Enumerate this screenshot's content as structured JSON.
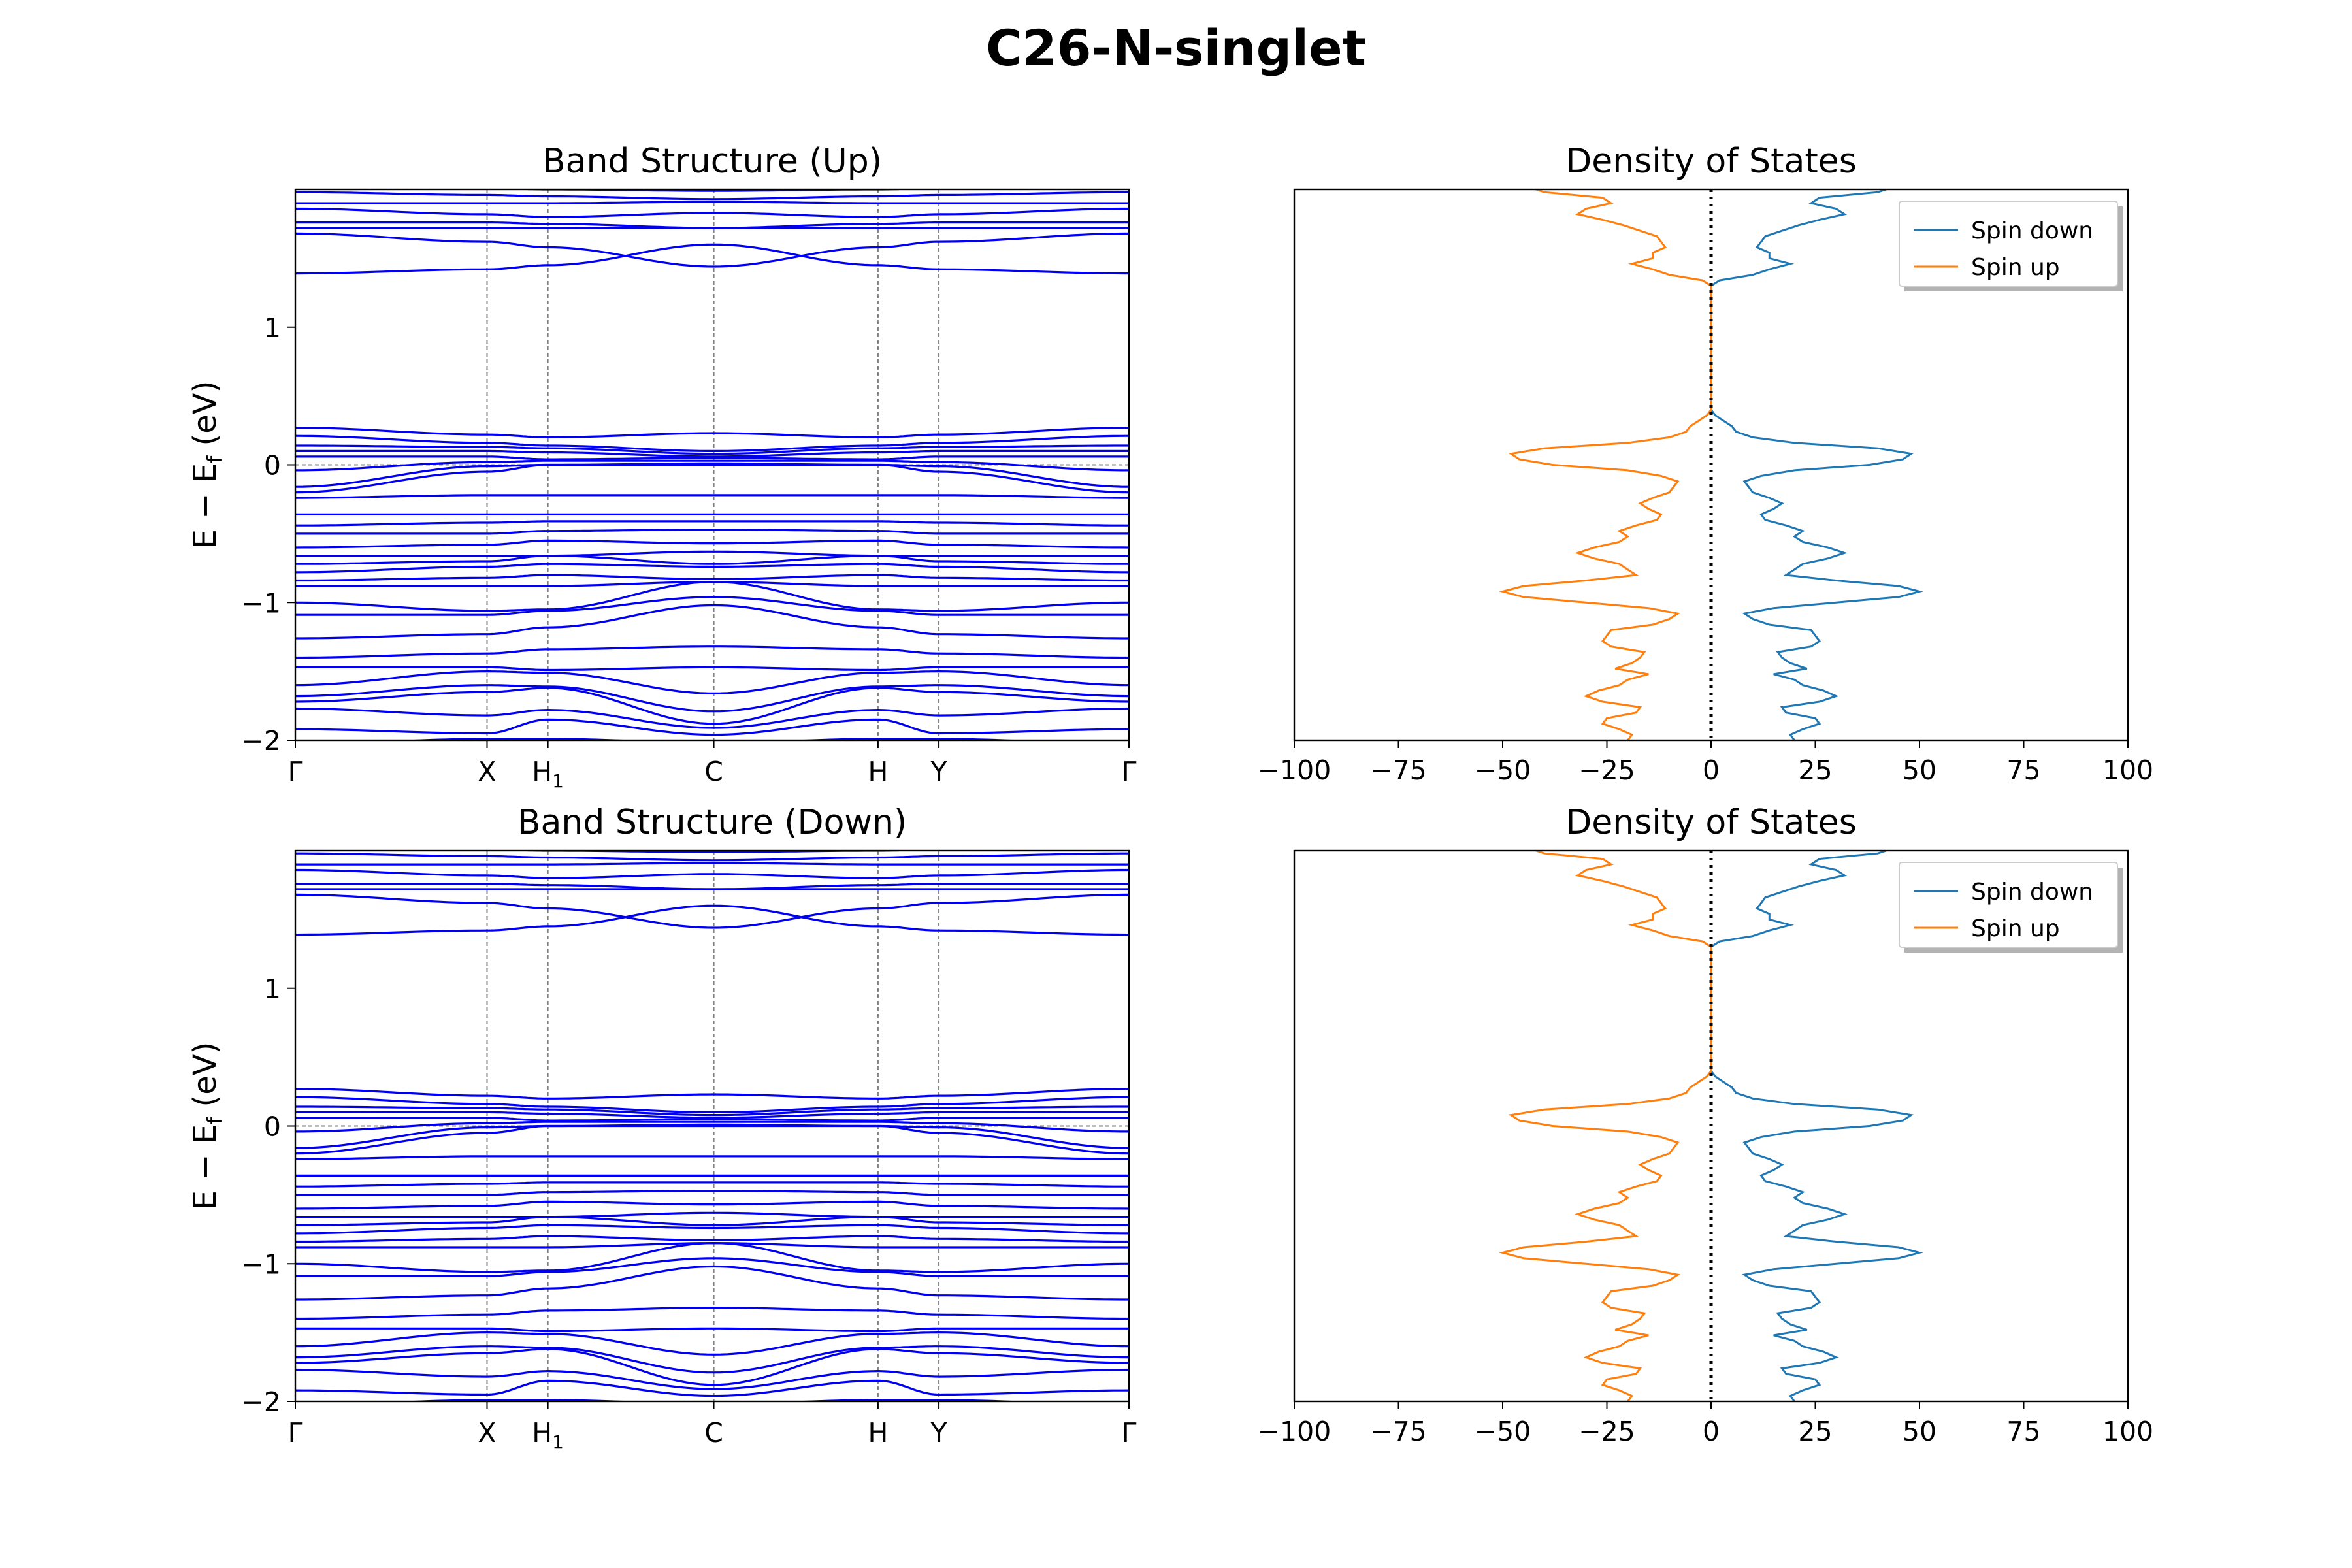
{
  "figure": {
    "title": "C26-N-singlet"
  },
  "chart_data": [
    {
      "id": "band_up",
      "type": "line",
      "title": "Band Structure (Up)",
      "ylabel": "E − E_f (eV)",
      "ylim": [
        -2,
        2
      ],
      "yticks": [
        -2,
        -1,
        0,
        1
      ],
      "kpoints": [
        {
          "label": "Γ",
          "pos": 0.0
        },
        {
          "label": "X",
          "pos": 0.23
        },
        {
          "label": "H",
          "sub": "1",
          "pos": 0.303
        },
        {
          "label": "C",
          "pos": 0.502
        },
        {
          "label": "H",
          "pos": 0.699
        },
        {
          "label": "Y",
          "pos": 0.772
        },
        {
          "label": "Γ",
          "pos": 1.0
        }
      ],
      "band_color": "#0000ee",
      "bands": [
        [
          -2.03,
          -1.99,
          -1.99,
          -2.02,
          -1.99,
          -1.99,
          -2.03
        ],
        [
          -1.92,
          -1.95,
          -1.85,
          -1.96,
          -1.85,
          -1.95,
          -1.92
        ],
        [
          -1.77,
          -1.82,
          -1.78,
          -1.91,
          -1.78,
          -1.82,
          -1.77
        ],
        [
          -1.72,
          -1.65,
          -1.62,
          -1.88,
          -1.62,
          -1.65,
          -1.72
        ],
        [
          -1.68,
          -1.6,
          -1.61,
          -1.79,
          -1.61,
          -1.6,
          -1.68
        ],
        [
          -1.6,
          -1.5,
          -1.51,
          -1.66,
          -1.51,
          -1.5,
          -1.6
        ],
        [
          -1.47,
          -1.47,
          -1.49,
          -1.47,
          -1.49,
          -1.47,
          -1.47
        ],
        [
          -1.4,
          -1.37,
          -1.34,
          -1.32,
          -1.34,
          -1.37,
          -1.4
        ],
        [
          -1.26,
          -1.23,
          -1.18,
          -1.02,
          -1.18,
          -1.23,
          -1.26
        ],
        [
          -1.09,
          -1.09,
          -1.06,
          -0.96,
          -1.06,
          -1.09,
          -1.09
        ],
        [
          -1.0,
          -1.06,
          -1.05,
          -0.85,
          -1.05,
          -1.06,
          -1.0
        ],
        [
          -0.88,
          -0.88,
          -0.88,
          -0.85,
          -0.88,
          -0.88,
          -0.88
        ],
        [
          -0.84,
          -0.82,
          -0.8,
          -0.83,
          -0.8,
          -0.82,
          -0.84
        ],
        [
          -0.78,
          -0.74,
          -0.72,
          -0.74,
          -0.72,
          -0.74,
          -0.78
        ],
        [
          -0.72,
          -0.7,
          -0.66,
          -0.72,
          -0.66,
          -0.7,
          -0.72
        ],
        [
          -0.66,
          -0.66,
          -0.66,
          -0.63,
          -0.66,
          -0.66,
          -0.66
        ],
        [
          -0.6,
          -0.58,
          -0.55,
          -0.57,
          -0.55,
          -0.58,
          -0.6
        ],
        [
          -0.5,
          -0.5,
          -0.48,
          -0.47,
          -0.48,
          -0.5,
          -0.5
        ],
        [
          -0.44,
          -0.42,
          -0.41,
          -0.41,
          -0.41,
          -0.42,
          -0.44
        ],
        [
          -0.36,
          -0.36,
          -0.36,
          -0.36,
          -0.36,
          -0.36,
          -0.36
        ],
        [
          -0.24,
          -0.22,
          -0.22,
          -0.22,
          -0.22,
          -0.22,
          -0.24
        ],
        [
          -0.2,
          -0.05,
          0.0,
          0.01,
          0.0,
          -0.05,
          -0.2
        ],
        [
          -0.16,
          -0.01,
          0.0,
          0.0,
          0.0,
          -0.01,
          -0.16
        ],
        [
          -0.04,
          0.02,
          0.03,
          0.03,
          0.03,
          0.02,
          -0.04
        ],
        [
          0.06,
          0.06,
          0.04,
          0.05,
          0.04,
          0.06,
          0.06
        ],
        [
          0.1,
          0.1,
          0.09,
          0.06,
          0.09,
          0.1,
          0.1
        ],
        [
          0.14,
          0.13,
          0.12,
          0.08,
          0.12,
          0.13,
          0.14
        ],
        [
          0.21,
          0.16,
          0.14,
          0.1,
          0.14,
          0.16,
          0.21
        ],
        [
          0.27,
          0.22,
          0.2,
          0.23,
          0.2,
          0.22,
          0.27
        ],
        [
          1.39,
          1.42,
          1.45,
          1.6,
          1.45,
          1.42,
          1.39
        ],
        [
          1.68,
          1.62,
          1.58,
          1.44,
          1.58,
          1.62,
          1.68
        ],
        [
          1.72,
          1.72,
          1.72,
          1.72,
          1.72,
          1.72,
          1.72
        ],
        [
          1.76,
          1.76,
          1.75,
          1.72,
          1.75,
          1.76,
          1.76
        ],
        [
          1.86,
          1.82,
          1.8,
          1.83,
          1.8,
          1.82,
          1.86
        ],
        [
          1.9,
          1.9,
          1.9,
          1.91,
          1.9,
          1.9,
          1.9
        ],
        [
          1.98,
          1.96,
          1.95,
          1.93,
          1.95,
          1.96,
          1.98
        ],
        [
          2.02,
          2.01,
          2.0,
          1.99,
          2.0,
          2.01,
          2.02
        ]
      ]
    },
    {
      "id": "dos_up",
      "type": "line",
      "title": "Density of States",
      "xlim": [
        -100,
        100
      ],
      "xticks": [
        -100,
        -75,
        -50,
        -25,
        0,
        25,
        50,
        75,
        100
      ],
      "ylim": [
        -2,
        2
      ],
      "legend": "top-right",
      "series": [
        {
          "name": "Spin down",
          "color": "#1f77b4",
          "sign": 1
        },
        {
          "name": "Spin up",
          "color": "#ff7f0e",
          "sign": -1
        }
      ],
      "energy": [
        -2.0,
        -1.96,
        -1.92,
        -1.88,
        -1.84,
        -1.8,
        -1.76,
        -1.72,
        -1.68,
        -1.64,
        -1.6,
        -1.56,
        -1.52,
        -1.48,
        -1.44,
        -1.4,
        -1.36,
        -1.32,
        -1.28,
        -1.24,
        -1.2,
        -1.16,
        -1.12,
        -1.08,
        -1.04,
        -1.0,
        -0.96,
        -0.92,
        -0.88,
        -0.84,
        -0.8,
        -0.76,
        -0.72,
        -0.68,
        -0.64,
        -0.6,
        -0.56,
        -0.52,
        -0.48,
        -0.44,
        -0.4,
        -0.36,
        -0.32,
        -0.28,
        -0.24,
        -0.2,
        -0.16,
        -0.12,
        -0.08,
        -0.04,
        0.0,
        0.04,
        0.08,
        0.12,
        0.16,
        0.2,
        0.24,
        0.28,
        0.32,
        0.36,
        0.4,
        1.3,
        1.34,
        1.38,
        1.42,
        1.46,
        1.5,
        1.54,
        1.58,
        1.62,
        1.66,
        1.7,
        1.74,
        1.78,
        1.82,
        1.86,
        1.9,
        1.94,
        1.98,
        2.0
      ],
      "dos": [
        20,
        19,
        22,
        26,
        25,
        18,
        17,
        26,
        30,
        27,
        22,
        20,
        15,
        23,
        19,
        17,
        16,
        24,
        26,
        25,
        24,
        14,
        10,
        8,
        15,
        30,
        45,
        50,
        45,
        30,
        18,
        20,
        22,
        28,
        32,
        28,
        22,
        20,
        22,
        18,
        13,
        12,
        15,
        17,
        14,
        10,
        9,
        8,
        12,
        20,
        38,
        46,
        48,
        40,
        20,
        10,
        6,
        5,
        3,
        1,
        0,
        0,
        2,
        10,
        14,
        19,
        14,
        14,
        11,
        12,
        13,
        17,
        21,
        26,
        32,
        30,
        24,
        26,
        40,
        42
      ]
    },
    {
      "id": "band_down",
      "type": "line",
      "title": "Band Structure (Down)",
      "ylabel": "E − E_f (eV)",
      "ylim": [
        -2,
        2
      ],
      "yticks": [
        -2,
        -1,
        0,
        1
      ],
      "kpoints": [
        {
          "label": "Γ",
          "pos": 0.0
        },
        {
          "label": "X",
          "pos": 0.23
        },
        {
          "label": "H",
          "sub": "1",
          "pos": 0.303
        },
        {
          "label": "C",
          "pos": 0.502
        },
        {
          "label": "H",
          "pos": 0.699
        },
        {
          "label": "Y",
          "pos": 0.772
        },
        {
          "label": "Γ",
          "pos": 1.0
        }
      ],
      "band_color": "#0000ee",
      "bands": [
        [
          -2.03,
          -1.99,
          -1.99,
          -2.02,
          -1.99,
          -1.99,
          -2.03
        ],
        [
          -1.92,
          -1.95,
          -1.85,
          -1.96,
          -1.85,
          -1.95,
          -1.92
        ],
        [
          -1.77,
          -1.82,
          -1.78,
          -1.91,
          -1.78,
          -1.82,
          -1.77
        ],
        [
          -1.72,
          -1.65,
          -1.62,
          -1.88,
          -1.62,
          -1.65,
          -1.72
        ],
        [
          -1.68,
          -1.6,
          -1.61,
          -1.79,
          -1.61,
          -1.6,
          -1.68
        ],
        [
          -1.6,
          -1.5,
          -1.51,
          -1.66,
          -1.51,
          -1.5,
          -1.6
        ],
        [
          -1.47,
          -1.47,
          -1.49,
          -1.47,
          -1.49,
          -1.47,
          -1.47
        ],
        [
          -1.4,
          -1.37,
          -1.34,
          -1.32,
          -1.34,
          -1.37,
          -1.4
        ],
        [
          -1.26,
          -1.23,
          -1.18,
          -1.02,
          -1.18,
          -1.23,
          -1.26
        ],
        [
          -1.09,
          -1.09,
          -1.06,
          -0.96,
          -1.06,
          -1.09,
          -1.09
        ],
        [
          -1.0,
          -1.06,
          -1.05,
          -0.85,
          -1.05,
          -1.06,
          -1.0
        ],
        [
          -0.88,
          -0.88,
          -0.88,
          -0.85,
          -0.88,
          -0.88,
          -0.88
        ],
        [
          -0.84,
          -0.82,
          -0.8,
          -0.83,
          -0.8,
          -0.82,
          -0.84
        ],
        [
          -0.78,
          -0.74,
          -0.72,
          -0.74,
          -0.72,
          -0.74,
          -0.78
        ],
        [
          -0.72,
          -0.7,
          -0.66,
          -0.72,
          -0.66,
          -0.7,
          -0.72
        ],
        [
          -0.66,
          -0.66,
          -0.66,
          -0.63,
          -0.66,
          -0.66,
          -0.66
        ],
        [
          -0.6,
          -0.58,
          -0.55,
          -0.57,
          -0.55,
          -0.58,
          -0.6
        ],
        [
          -0.5,
          -0.5,
          -0.48,
          -0.47,
          -0.48,
          -0.5,
          -0.5
        ],
        [
          -0.44,
          -0.42,
          -0.41,
          -0.41,
          -0.41,
          -0.42,
          -0.44
        ],
        [
          -0.36,
          -0.36,
          -0.36,
          -0.36,
          -0.36,
          -0.36,
          -0.36
        ],
        [
          -0.24,
          -0.22,
          -0.22,
          -0.22,
          -0.22,
          -0.22,
          -0.24
        ],
        [
          -0.2,
          -0.05,
          0.0,
          0.01,
          0.0,
          -0.05,
          -0.2
        ],
        [
          -0.16,
          -0.01,
          0.0,
          0.0,
          0.0,
          -0.01,
          -0.16
        ],
        [
          -0.04,
          0.02,
          0.03,
          0.03,
          0.03,
          0.02,
          -0.04
        ],
        [
          0.06,
          0.06,
          0.04,
          0.05,
          0.04,
          0.06,
          0.06
        ],
        [
          0.1,
          0.1,
          0.09,
          0.06,
          0.09,
          0.1,
          0.1
        ],
        [
          0.14,
          0.13,
          0.12,
          0.08,
          0.12,
          0.13,
          0.14
        ],
        [
          0.21,
          0.16,
          0.14,
          0.1,
          0.14,
          0.16,
          0.21
        ],
        [
          0.27,
          0.22,
          0.2,
          0.23,
          0.2,
          0.22,
          0.27
        ],
        [
          1.39,
          1.42,
          1.45,
          1.6,
          1.45,
          1.42,
          1.39
        ],
        [
          1.68,
          1.62,
          1.58,
          1.44,
          1.58,
          1.62,
          1.68
        ],
        [
          1.72,
          1.72,
          1.72,
          1.72,
          1.72,
          1.72,
          1.72
        ],
        [
          1.76,
          1.76,
          1.75,
          1.72,
          1.75,
          1.76,
          1.76
        ],
        [
          1.86,
          1.82,
          1.8,
          1.83,
          1.8,
          1.82,
          1.86
        ],
        [
          1.9,
          1.9,
          1.9,
          1.91,
          1.9,
          1.9,
          1.9
        ],
        [
          1.98,
          1.96,
          1.95,
          1.93,
          1.95,
          1.96,
          1.98
        ],
        [
          2.02,
          2.01,
          2.0,
          1.99,
          2.0,
          2.01,
          2.02
        ]
      ]
    },
    {
      "id": "dos_down",
      "type": "line",
      "title": "Density of States",
      "xlim": [
        -100,
        100
      ],
      "xticks": [
        -100,
        -75,
        -50,
        -25,
        0,
        25,
        50,
        75,
        100
      ],
      "ylim": [
        -2,
        2
      ],
      "legend": "top-right",
      "series": [
        {
          "name": "Spin down",
          "color": "#1f77b4",
          "sign": 1
        },
        {
          "name": "Spin up",
          "color": "#ff7f0e",
          "sign": -1
        }
      ],
      "energy": [
        -2.0,
        -1.96,
        -1.92,
        -1.88,
        -1.84,
        -1.8,
        -1.76,
        -1.72,
        -1.68,
        -1.64,
        -1.6,
        -1.56,
        -1.52,
        -1.48,
        -1.44,
        -1.4,
        -1.36,
        -1.32,
        -1.28,
        -1.24,
        -1.2,
        -1.16,
        -1.12,
        -1.08,
        -1.04,
        -1.0,
        -0.96,
        -0.92,
        -0.88,
        -0.84,
        -0.8,
        -0.76,
        -0.72,
        -0.68,
        -0.64,
        -0.6,
        -0.56,
        -0.52,
        -0.48,
        -0.44,
        -0.4,
        -0.36,
        -0.32,
        -0.28,
        -0.24,
        -0.2,
        -0.16,
        -0.12,
        -0.08,
        -0.04,
        0.0,
        0.04,
        0.08,
        0.12,
        0.16,
        0.2,
        0.24,
        0.28,
        0.32,
        0.36,
        0.4,
        1.3,
        1.34,
        1.38,
        1.42,
        1.46,
        1.5,
        1.54,
        1.58,
        1.62,
        1.66,
        1.7,
        1.74,
        1.78,
        1.82,
        1.86,
        1.9,
        1.94,
        1.98,
        2.0
      ],
      "dos": [
        20,
        19,
        22,
        26,
        25,
        18,
        17,
        26,
        30,
        27,
        22,
        20,
        15,
        23,
        19,
        17,
        16,
        24,
        26,
        25,
        24,
        14,
        10,
        8,
        15,
        30,
        45,
        50,
        45,
        30,
        18,
        20,
        22,
        28,
        32,
        28,
        22,
        20,
        22,
        18,
        13,
        12,
        15,
        17,
        14,
        10,
        9,
        8,
        12,
        20,
        38,
        46,
        48,
        40,
        20,
        10,
        6,
        5,
        3,
        1,
        0,
        0,
        2,
        10,
        14,
        19,
        14,
        14,
        11,
        12,
        13,
        17,
        21,
        26,
        32,
        30,
        24,
        26,
        40,
        42
      ]
    }
  ]
}
